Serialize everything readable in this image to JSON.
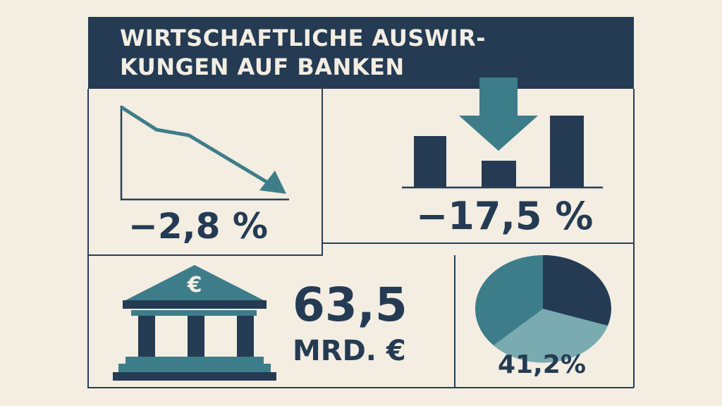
{
  "title": {
    "line1": "WIRTSCHAFTLICHE AUSWIR-",
    "line2": "KUNGEN AUF BANKEN"
  },
  "panels": {
    "trend": {
      "value": "−2,8 %",
      "icon": "line-chart-down-arrow-icon"
    },
    "bars": {
      "value": "−17,5 %",
      "icon": "bar-chart-down-arrow-icon"
    },
    "bank": {
      "value": "63,5",
      "unit": "MRD. €",
      "icon": "bank-building-euro-icon",
      "emblem": "€"
    },
    "pie": {
      "value": "41,2%",
      "icon": "pie-chart-icon"
    }
  },
  "colors": {
    "background": "#f3ede2",
    "navy": "#243b53",
    "teal": "#3d7d89",
    "light_teal": "#7aabb0",
    "line": "#2a3f55"
  }
}
